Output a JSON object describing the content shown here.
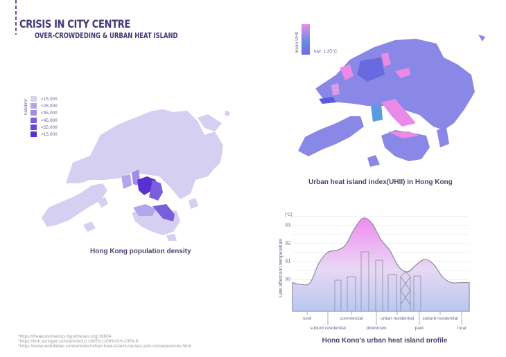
{
  "header": {
    "title": "CRISIS IN CITY CENTRE",
    "subtitle": "OVER-CROWDEDING & URBAN HEAT ISLAND"
  },
  "population_map": {
    "caption": "Hong Kong population density",
    "legend_unit": "hab/km²",
    "legend": [
      {
        "label": "<15,000",
        "color": "#d9d3f3"
      },
      {
        "label": "<25,000",
        "color": "#b3a6ea"
      },
      {
        "label": "<35,000",
        "color": "#9e8de3"
      },
      {
        "label": "<45,000",
        "color": "#7a5fdc"
      },
      {
        "label": "<55,000",
        "color": "#6a45d8"
      },
      {
        "label": ">15,000",
        "color": "#5a30d3"
      }
    ],
    "base_color": "#d5cff2"
  },
  "uhi_map": {
    "caption": "Urban heat island index(UHII) in Hong Kong",
    "legend_unit": "mean UHII",
    "legend_low": "low: 1.35°C",
    "colors": {
      "high": "#e88ce8",
      "mid": "#6a8ce0",
      "low": "#7a78e0"
    }
  },
  "chart_data": {
    "type": "area",
    "title": "Hong Kong's urban heat island profile",
    "ylabel": "Late afternoon temperature",
    "yunit": "[°C]",
    "ylim": [
      28.2,
      33.6
    ],
    "yticks": [
      30,
      31,
      32,
      33
    ],
    "grid": true,
    "zones_top": [
      "rural",
      "commercial",
      "urban residential",
      "suburb residential"
    ],
    "zones_bottom": [
      "suburb residential",
      "downtown",
      "park",
      "rural"
    ],
    "x": [
      0,
      1,
      2,
      3,
      4,
      5,
      6,
      7,
      8,
      9,
      10,
      11,
      12,
      13,
      14,
      15,
      16,
      17,
      18,
      19,
      20
    ],
    "values": [
      29.8,
      29.7,
      29.8,
      30.9,
      31.5,
      31.6,
      31.9,
      32.8,
      33.4,
      33.1,
      32.2,
      31.6,
      30.7,
      30.4,
      30.8,
      31.1,
      30.8,
      30.1,
      29.8,
      29.8,
      29.8
    ],
    "colors": {
      "top": "#f08cf0",
      "bottom": "#b8c8f0",
      "line": "#8a8a9a"
    }
  },
  "references": [
    "*https://freakonometrics.hypotheses.org/16604",
    "*https://link.springer.com/article/10.1007/s11069-016-2353-6",
    "*https://www.worldatlas.com/articles/urban-heat-island-causes-and-consequences.html"
  ]
}
